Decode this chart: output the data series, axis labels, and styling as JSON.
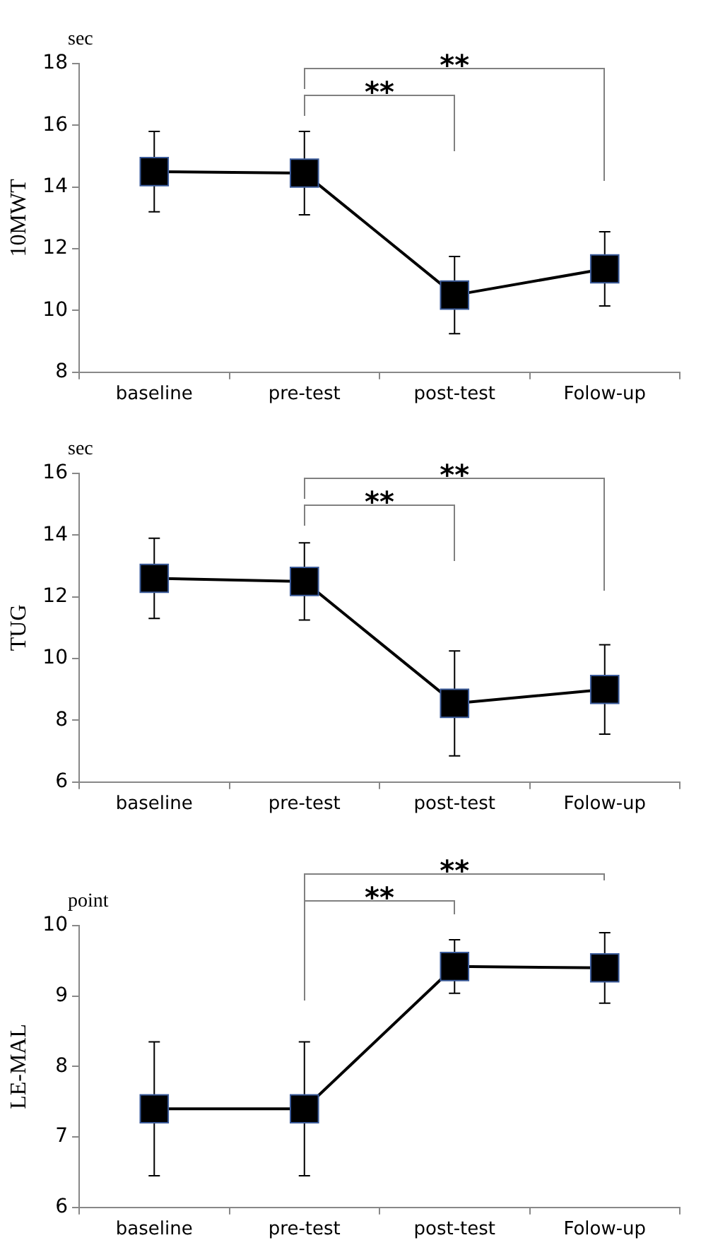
{
  "chart_data": [
    {
      "type": "line",
      "ylabel": "10MWT",
      "categories": [
        "baseline",
        "pre-test",
        "post-test",
        "Folow-up"
      ],
      "values": [
        14.5,
        14.45,
        10.5,
        11.35
      ],
      "errors": [
        1.3,
        1.35,
        1.25,
        1.2
      ],
      "color": "#000000",
      "marker": "square",
      "line_style": "solid",
      "ylim": [
        8,
        18
      ],
      "yticks": [
        8,
        10,
        12,
        14,
        16,
        18
      ],
      "grid": false,
      "annotations": [
        "sec",
        "**",
        "**"
      ]
    },
    {
      "type": "line",
      "ylabel": "TUG",
      "categories": [
        "baseline",
        "pre-test",
        "post-test",
        "Folow-up"
      ],
      "values": [
        12.6,
        12.5,
        8.55,
        9.0
      ],
      "errors": [
        1.3,
        1.25,
        1.7,
        1.45
      ],
      "color": "#000000",
      "marker": "square",
      "line_style": "solid",
      "ylim": [
        6,
        16
      ],
      "yticks": [
        6,
        8,
        10,
        12,
        14,
        16
      ],
      "grid": false,
      "annotations": [
        "sec",
        "**",
        "**"
      ]
    },
    {
      "type": "line",
      "ylabel": "LE-MAL",
      "categories": [
        "baseline",
        "pre-test",
        "post-test",
        "Folow-up"
      ],
      "values": [
        7.4,
        7.4,
        9.42,
        9.4
      ],
      "errors": [
        0.95,
        0.95,
        0.38,
        0.5
      ],
      "color": "#000000",
      "marker": "square",
      "line_style": "solid",
      "ylim": [
        6,
        10
      ],
      "yticks": [
        6,
        7,
        8,
        9,
        10
      ],
      "grid": false,
      "annotations": [
        "point",
        "**",
        "**"
      ]
    }
  ]
}
